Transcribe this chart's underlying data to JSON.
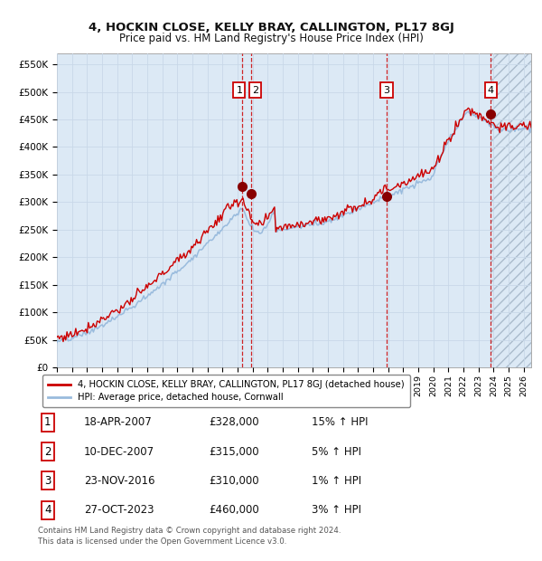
{
  "title": "4, HOCKIN CLOSE, KELLY BRAY, CALLINGTON, PL17 8GJ",
  "subtitle": "Price paid vs. HM Land Registry's House Price Index (HPI)",
  "xlim": [
    1995.0,
    2026.5
  ],
  "ylim": [
    0,
    570000
  ],
  "yticks": [
    0,
    50000,
    100000,
    150000,
    200000,
    250000,
    300000,
    350000,
    400000,
    450000,
    500000,
    550000
  ],
  "ytick_labels": [
    "£0",
    "£50K",
    "£100K",
    "£150K",
    "£200K",
    "£250K",
    "£300K",
    "£350K",
    "£400K",
    "£450K",
    "£500K",
    "£550K"
  ],
  "xtick_years": [
    1995,
    1996,
    1997,
    1998,
    1999,
    2000,
    2001,
    2002,
    2003,
    2004,
    2005,
    2006,
    2007,
    2008,
    2009,
    2010,
    2011,
    2012,
    2013,
    2014,
    2015,
    2016,
    2017,
    2018,
    2019,
    2020,
    2021,
    2022,
    2023,
    2024,
    2025,
    2026
  ],
  "grid_color": "#c8d8e8",
  "bg_color": "#dce9f5",
  "sale_color": "#cc0000",
  "hpi_color": "#99bbdd",
  "vline_color": "#cc0000",
  "marker_color": "#880000",
  "sale_label": "4, HOCKIN CLOSE, KELLY BRAY, CALLINGTON, PL17 8GJ (detached house)",
  "hpi_label": "HPI: Average price, detached house, Cornwall",
  "sales": [
    {
      "num": 1,
      "date_year": 2007.29,
      "price": 328000,
      "label": "1"
    },
    {
      "num": 2,
      "date_year": 2007.92,
      "price": 315000,
      "label": "2"
    },
    {
      "num": 3,
      "date_year": 2016.9,
      "price": 310000,
      "label": "3"
    },
    {
      "num": 4,
      "date_year": 2023.82,
      "price": 460000,
      "label": "4"
    }
  ],
  "table_rows": [
    {
      "num": "1",
      "date": "18-APR-2007",
      "price": "£328,000",
      "hpi": "15% ↑ HPI"
    },
    {
      "num": "2",
      "date": "10-DEC-2007",
      "price": "£315,000",
      "hpi": "5% ↑ HPI"
    },
    {
      "num": "3",
      "date": "23-NOV-2016",
      "price": "£310,000",
      "hpi": "1% ↑ HPI"
    },
    {
      "num": "4",
      "date": "27-OCT-2023",
      "price": "£460,000",
      "hpi": "3% ↑ HPI"
    }
  ],
  "footer": "Contains HM Land Registry data © Crown copyright and database right 2024.\nThis data is licensed under the Open Government Licence v3.0.",
  "hatch_start": 2023.82
}
